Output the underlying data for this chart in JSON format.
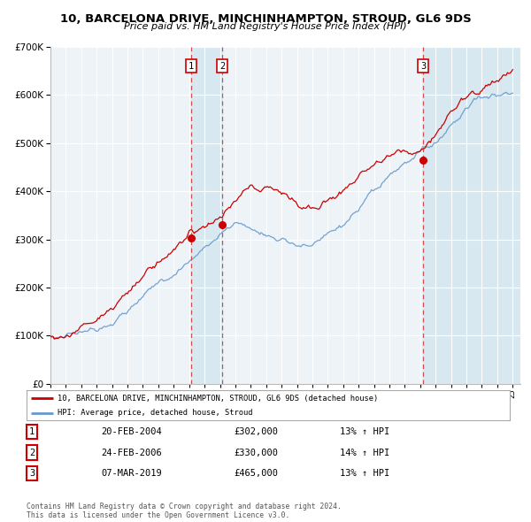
{
  "title": "10, BARCELONA DRIVE, MINCHINHAMPTON, STROUD, GL6 9DS",
  "subtitle": "Price paid vs. HM Land Registry's House Price Index (HPI)",
  "legend_line1": "10, BARCELONA DRIVE, MINCHINHAMPTON, STROUD, GL6 9DS (detached house)",
  "legend_line2": "HPI: Average price, detached house, Stroud",
  "transactions": [
    {
      "num": 1,
      "date": "20-FEB-2004",
      "date_x": 2004.13,
      "price": 302000,
      "label": "£302,000",
      "hpi_pct": "13%"
    },
    {
      "num": 2,
      "date": "24-FEB-2006",
      "date_x": 2006.15,
      "price": 330000,
      "label": "£330,000",
      "hpi_pct": "14%"
    },
    {
      "num": 3,
      "date": "07-MAR-2019",
      "date_x": 2019.18,
      "price": 465000,
      "label": "£465,000",
      "hpi_pct": "13%"
    }
  ],
  "table_rows": [
    {
      "num": "1",
      "date": "20-FEB-2004",
      "price": "£302,000",
      "hpi": "13% ↑ HPI"
    },
    {
      "num": "2",
      "date": "24-FEB-2006",
      "price": "£330,000",
      "hpi": "14% ↑ HPI"
    },
    {
      "num": "3",
      "date": "07-MAR-2019",
      "price": "£465,000",
      "hpi": "13% ↑ HPI"
    }
  ],
  "property_color": "#cc0000",
  "hpi_color": "#6699cc",
  "shade_color": "#d8e8f0",
  "grid_color": "#ffffff",
  "plot_bg": "#eef3f8",
  "footer": "Contains HM Land Registry data © Crown copyright and database right 2024.\nThis data is licensed under the Open Government Licence v3.0.",
  "ylim": [
    0,
    700000
  ],
  "xlim_start": 1995.0,
  "xlim_end": 2025.5
}
